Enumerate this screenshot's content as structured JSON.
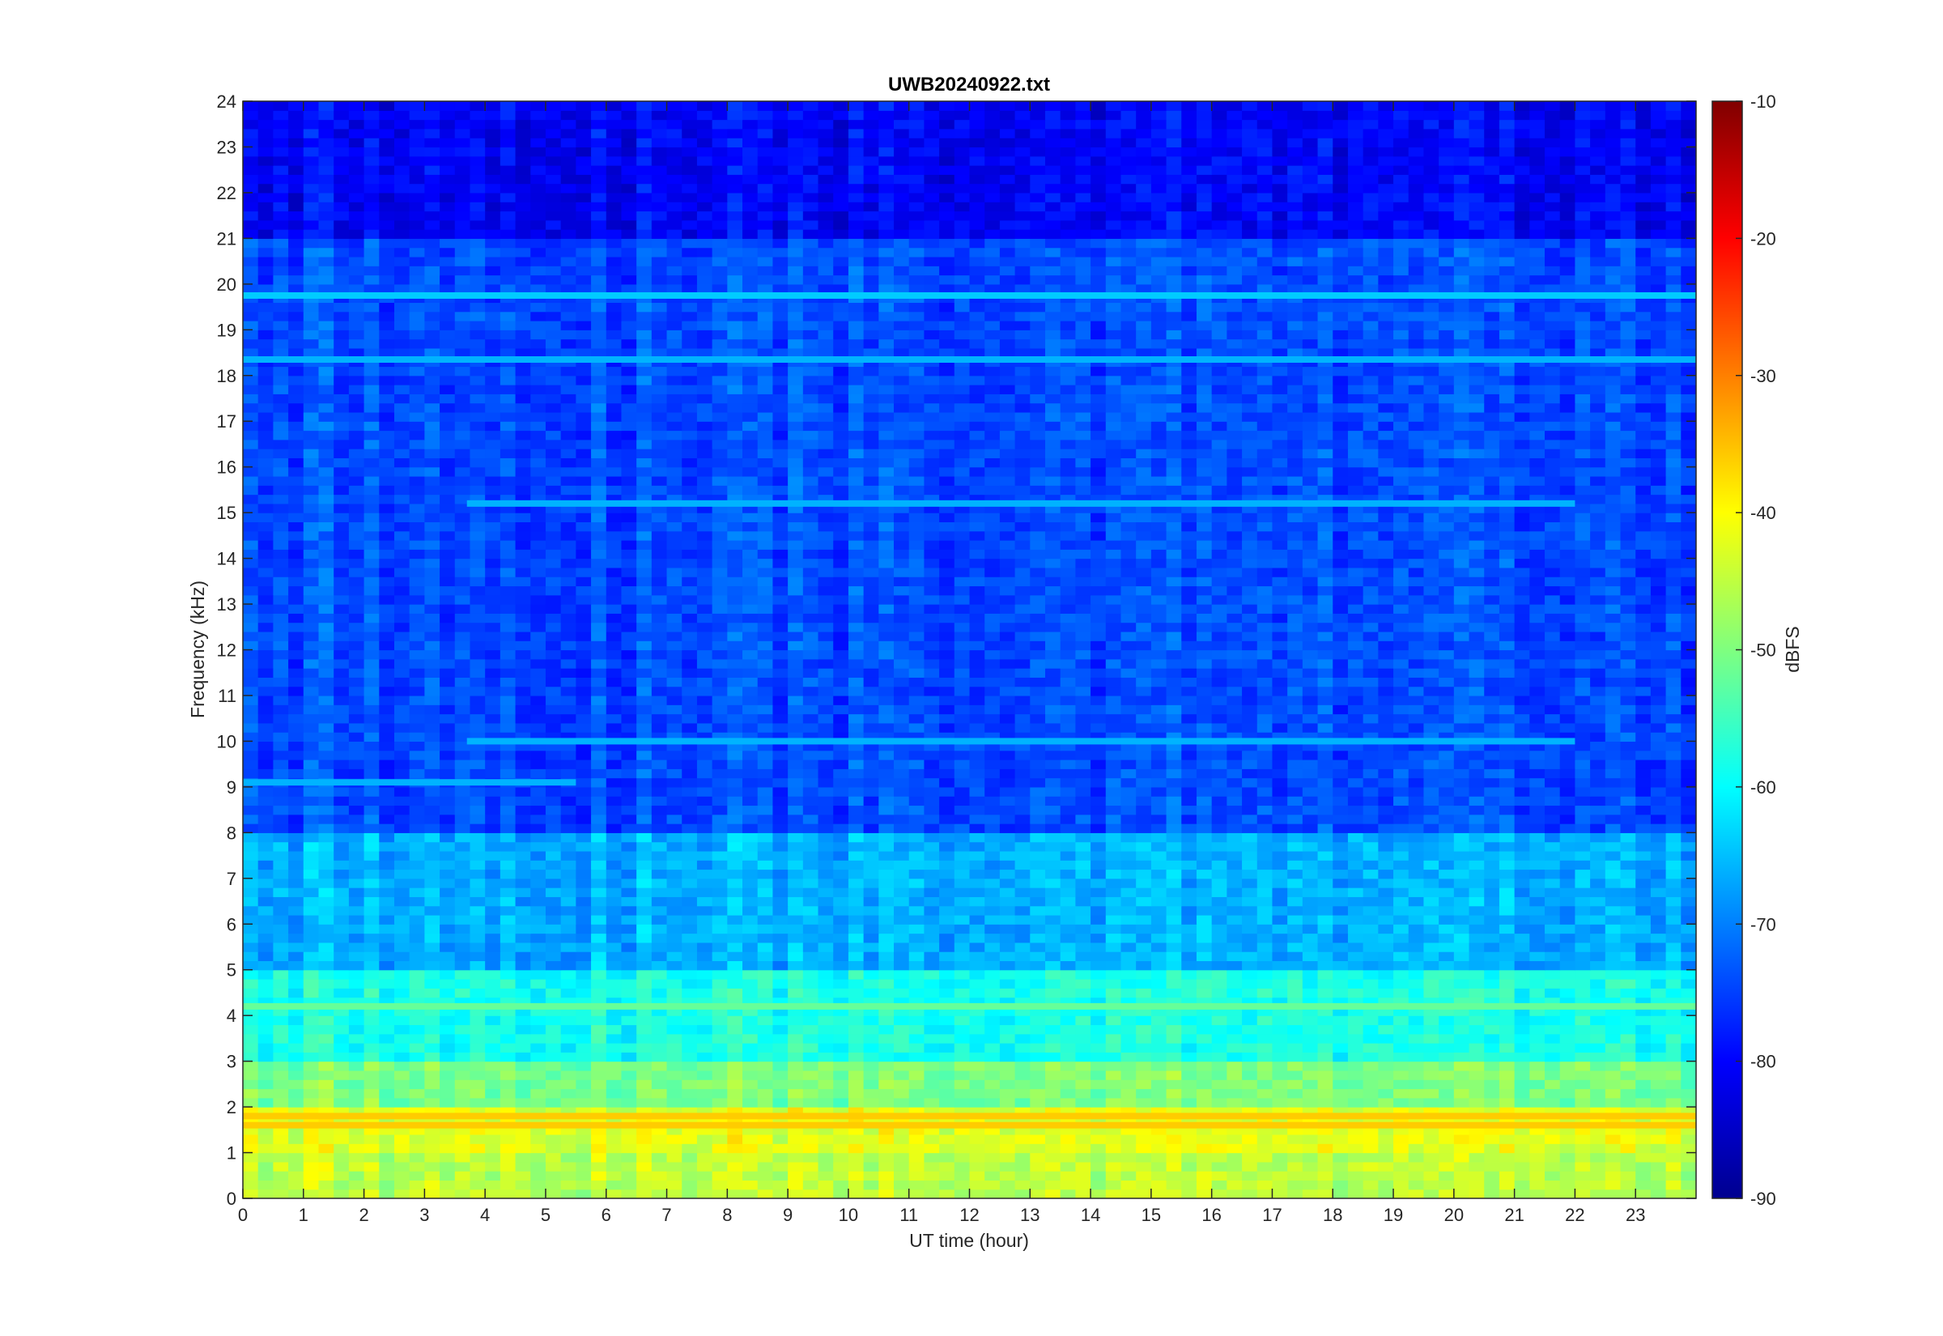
{
  "chart_data": {
    "type": "heatmap",
    "title": "UWB20240922.txt",
    "xlabel": "UT time (hour)",
    "ylabel": "Frequency (kHz)",
    "colorbar_label": "dBFS",
    "xlim": [
      0,
      24
    ],
    "ylim": [
      0,
      24
    ],
    "clim": [
      -90,
      -10
    ],
    "x_ticks": [
      0,
      1,
      2,
      3,
      4,
      5,
      6,
      7,
      8,
      9,
      10,
      11,
      12,
      13,
      14,
      15,
      16,
      17,
      18,
      19,
      20,
      21,
      22,
      23
    ],
    "y_ticks": [
      0,
      1,
      2,
      3,
      4,
      5,
      6,
      7,
      8,
      9,
      10,
      11,
      12,
      13,
      14,
      15,
      16,
      17,
      18,
      19,
      20,
      21,
      22,
      23,
      24
    ],
    "colorbar_ticks": [
      -90,
      -80,
      -70,
      -60,
      -50,
      -40,
      -30,
      -20,
      -10
    ],
    "colormap": "jet",
    "grid": false,
    "band_levels_dbfs": [
      {
        "freq_khz": [
          0,
          0.1
        ],
        "level": -40
      },
      {
        "freq_khz": [
          0.1,
          1.0
        ],
        "level": -45
      },
      {
        "freq_khz": [
          1.0,
          2.0
        ],
        "level": -42
      },
      {
        "freq_khz": [
          2.0,
          3.0
        ],
        "level": -50
      },
      {
        "freq_khz": [
          3.0,
          5.0
        ],
        "level": -58
      },
      {
        "freq_khz": [
          5.0,
          8.0
        ],
        "level": -66
      },
      {
        "freq_khz": [
          8.0,
          21.0
        ],
        "level": -74
      },
      {
        "freq_khz": [
          21.0,
          24.0
        ],
        "level": -80
      }
    ],
    "line_features_khz": [
      {
        "freq": 19.75,
        "level": -64,
        "hours": [
          0,
          24
        ]
      },
      {
        "freq": 18.35,
        "level": -66,
        "hours": [
          0,
          24
        ]
      },
      {
        "freq": 15.2,
        "level": -66,
        "hours": [
          3.7,
          22
        ]
      },
      {
        "freq": 10.0,
        "level": -66,
        "hours": [
          3.7,
          22
        ]
      },
      {
        "freq": 9.1,
        "level": -66,
        "hours": [
          0,
          5.5
        ]
      },
      {
        "freq": 4.2,
        "level": -52,
        "hours": [
          0,
          24
        ]
      },
      {
        "freq": 1.8,
        "level": -36,
        "hours": [
          0,
          24
        ]
      },
      {
        "freq": 1.6,
        "level": -36,
        "hours": [
          0,
          24
        ]
      }
    ]
  }
}
